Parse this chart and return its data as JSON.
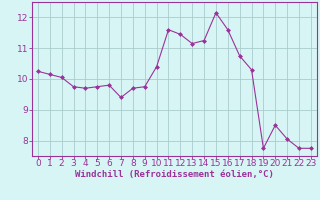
{
  "x": [
    0,
    1,
    2,
    3,
    4,
    5,
    6,
    7,
    8,
    9,
    10,
    11,
    12,
    13,
    14,
    15,
    16,
    17,
    18,
    19,
    20,
    21,
    22,
    23
  ],
  "y": [
    10.25,
    10.15,
    10.05,
    9.75,
    9.7,
    9.75,
    9.8,
    9.4,
    9.7,
    9.75,
    10.4,
    11.6,
    11.45,
    11.15,
    11.25,
    12.15,
    11.6,
    10.75,
    10.3,
    7.75,
    8.5,
    8.05,
    7.75,
    7.75
  ],
  "line_color": "#993399",
  "marker": "D",
  "marker_size": 2.0,
  "bg_color": "#d8f5f5",
  "grid_color": "#aacccc",
  "axis_color": "#993399",
  "xlabel": "Windchill (Refroidissement éolien,°C)",
  "xlabel_fontsize": 6.5,
  "tick_fontsize": 6.5,
  "xlim": [
    -0.5,
    23.5
  ],
  "ylim": [
    7.5,
    12.5
  ],
  "yticks": [
    8,
    9,
    10,
    11,
    12
  ],
  "xticks": [
    0,
    1,
    2,
    3,
    4,
    5,
    6,
    7,
    8,
    9,
    10,
    11,
    12,
    13,
    14,
    15,
    16,
    17,
    18,
    19,
    20,
    21,
    22,
    23
  ]
}
